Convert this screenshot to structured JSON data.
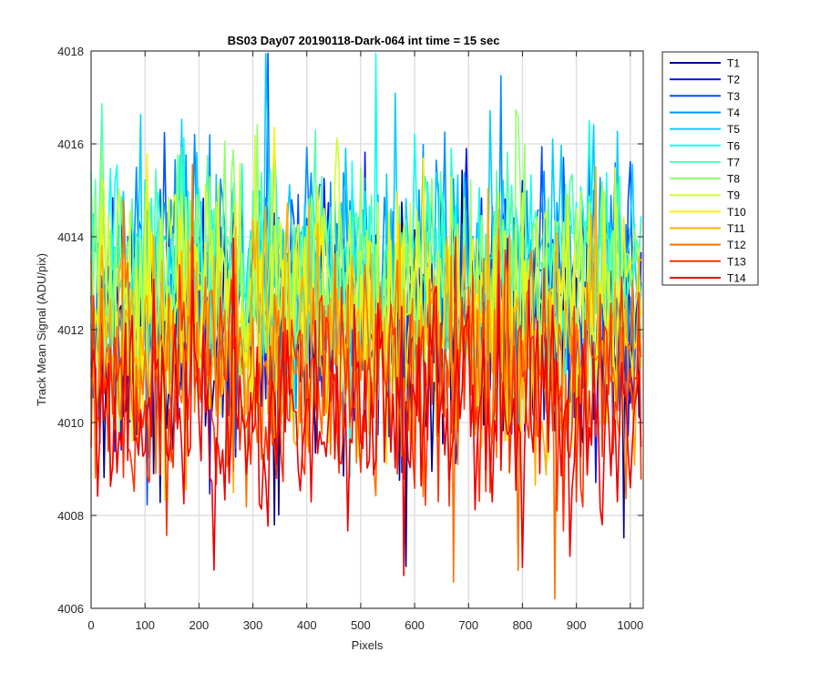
{
  "chart_data": {
    "type": "line",
    "title": "BS03 Day07 20190118-Dark-064 int time = 15 sec",
    "xlabel": "Pixels",
    "ylabel": "Track Mean Signal (ADU/pix)",
    "xlim": [
      0,
      1024
    ],
    "ylim": [
      4006,
      4018
    ],
    "xticks": [
      0,
      100,
      200,
      300,
      400,
      500,
      600,
      700,
      800,
      900,
      1000
    ],
    "yticks": [
      4006,
      4008,
      4010,
      4012,
      4014,
      4016,
      4018
    ],
    "grid": true,
    "legend_position": "outside-right",
    "x_start": 0,
    "x_end": 1023,
    "x_step": 4,
    "series": [
      {
        "name": "T1",
        "color": "#00008F",
        "mean": 4011.8,
        "noise": 1.4
      },
      {
        "name": "T2",
        "color": "#0010FF",
        "mean": 4012.2,
        "noise": 1.4
      },
      {
        "name": "T3",
        "color": "#0050FF",
        "mean": 4012.6,
        "noise": 1.4
      },
      {
        "name": "T4",
        "color": "#0090FF",
        "mean": 4013.1,
        "noise": 1.3
      },
      {
        "name": "T5",
        "color": "#00CFFF",
        "mean": 4013.5,
        "noise": 1.3
      },
      {
        "name": "T6",
        "color": "#10FFEF",
        "mean": 4013.4,
        "noise": 1.3
      },
      {
        "name": "T7",
        "color": "#50FFAF",
        "mean": 4013.2,
        "noise": 1.3
      },
      {
        "name": "T8",
        "color": "#90FF6F",
        "mean": 4012.9,
        "noise": 1.3
      },
      {
        "name": "T9",
        "color": "#CFFF30",
        "mean": 4012.6,
        "noise": 1.3
      },
      {
        "name": "T10",
        "color": "#FFEF00",
        "mean": 4012.3,
        "noise": 1.3
      },
      {
        "name": "T11",
        "color": "#FFAF00",
        "mean": 4011.8,
        "noise": 1.3
      },
      {
        "name": "T12",
        "color": "#FF7000",
        "mean": 4011.2,
        "noise": 1.3
      },
      {
        "name": "T13",
        "color": "#FF3000",
        "mean": 4010.6,
        "noise": 1.3
      },
      {
        "name": "T14",
        "color": "#EF0000",
        "mean": 4010.0,
        "noise": 1.3
      }
    ]
  }
}
